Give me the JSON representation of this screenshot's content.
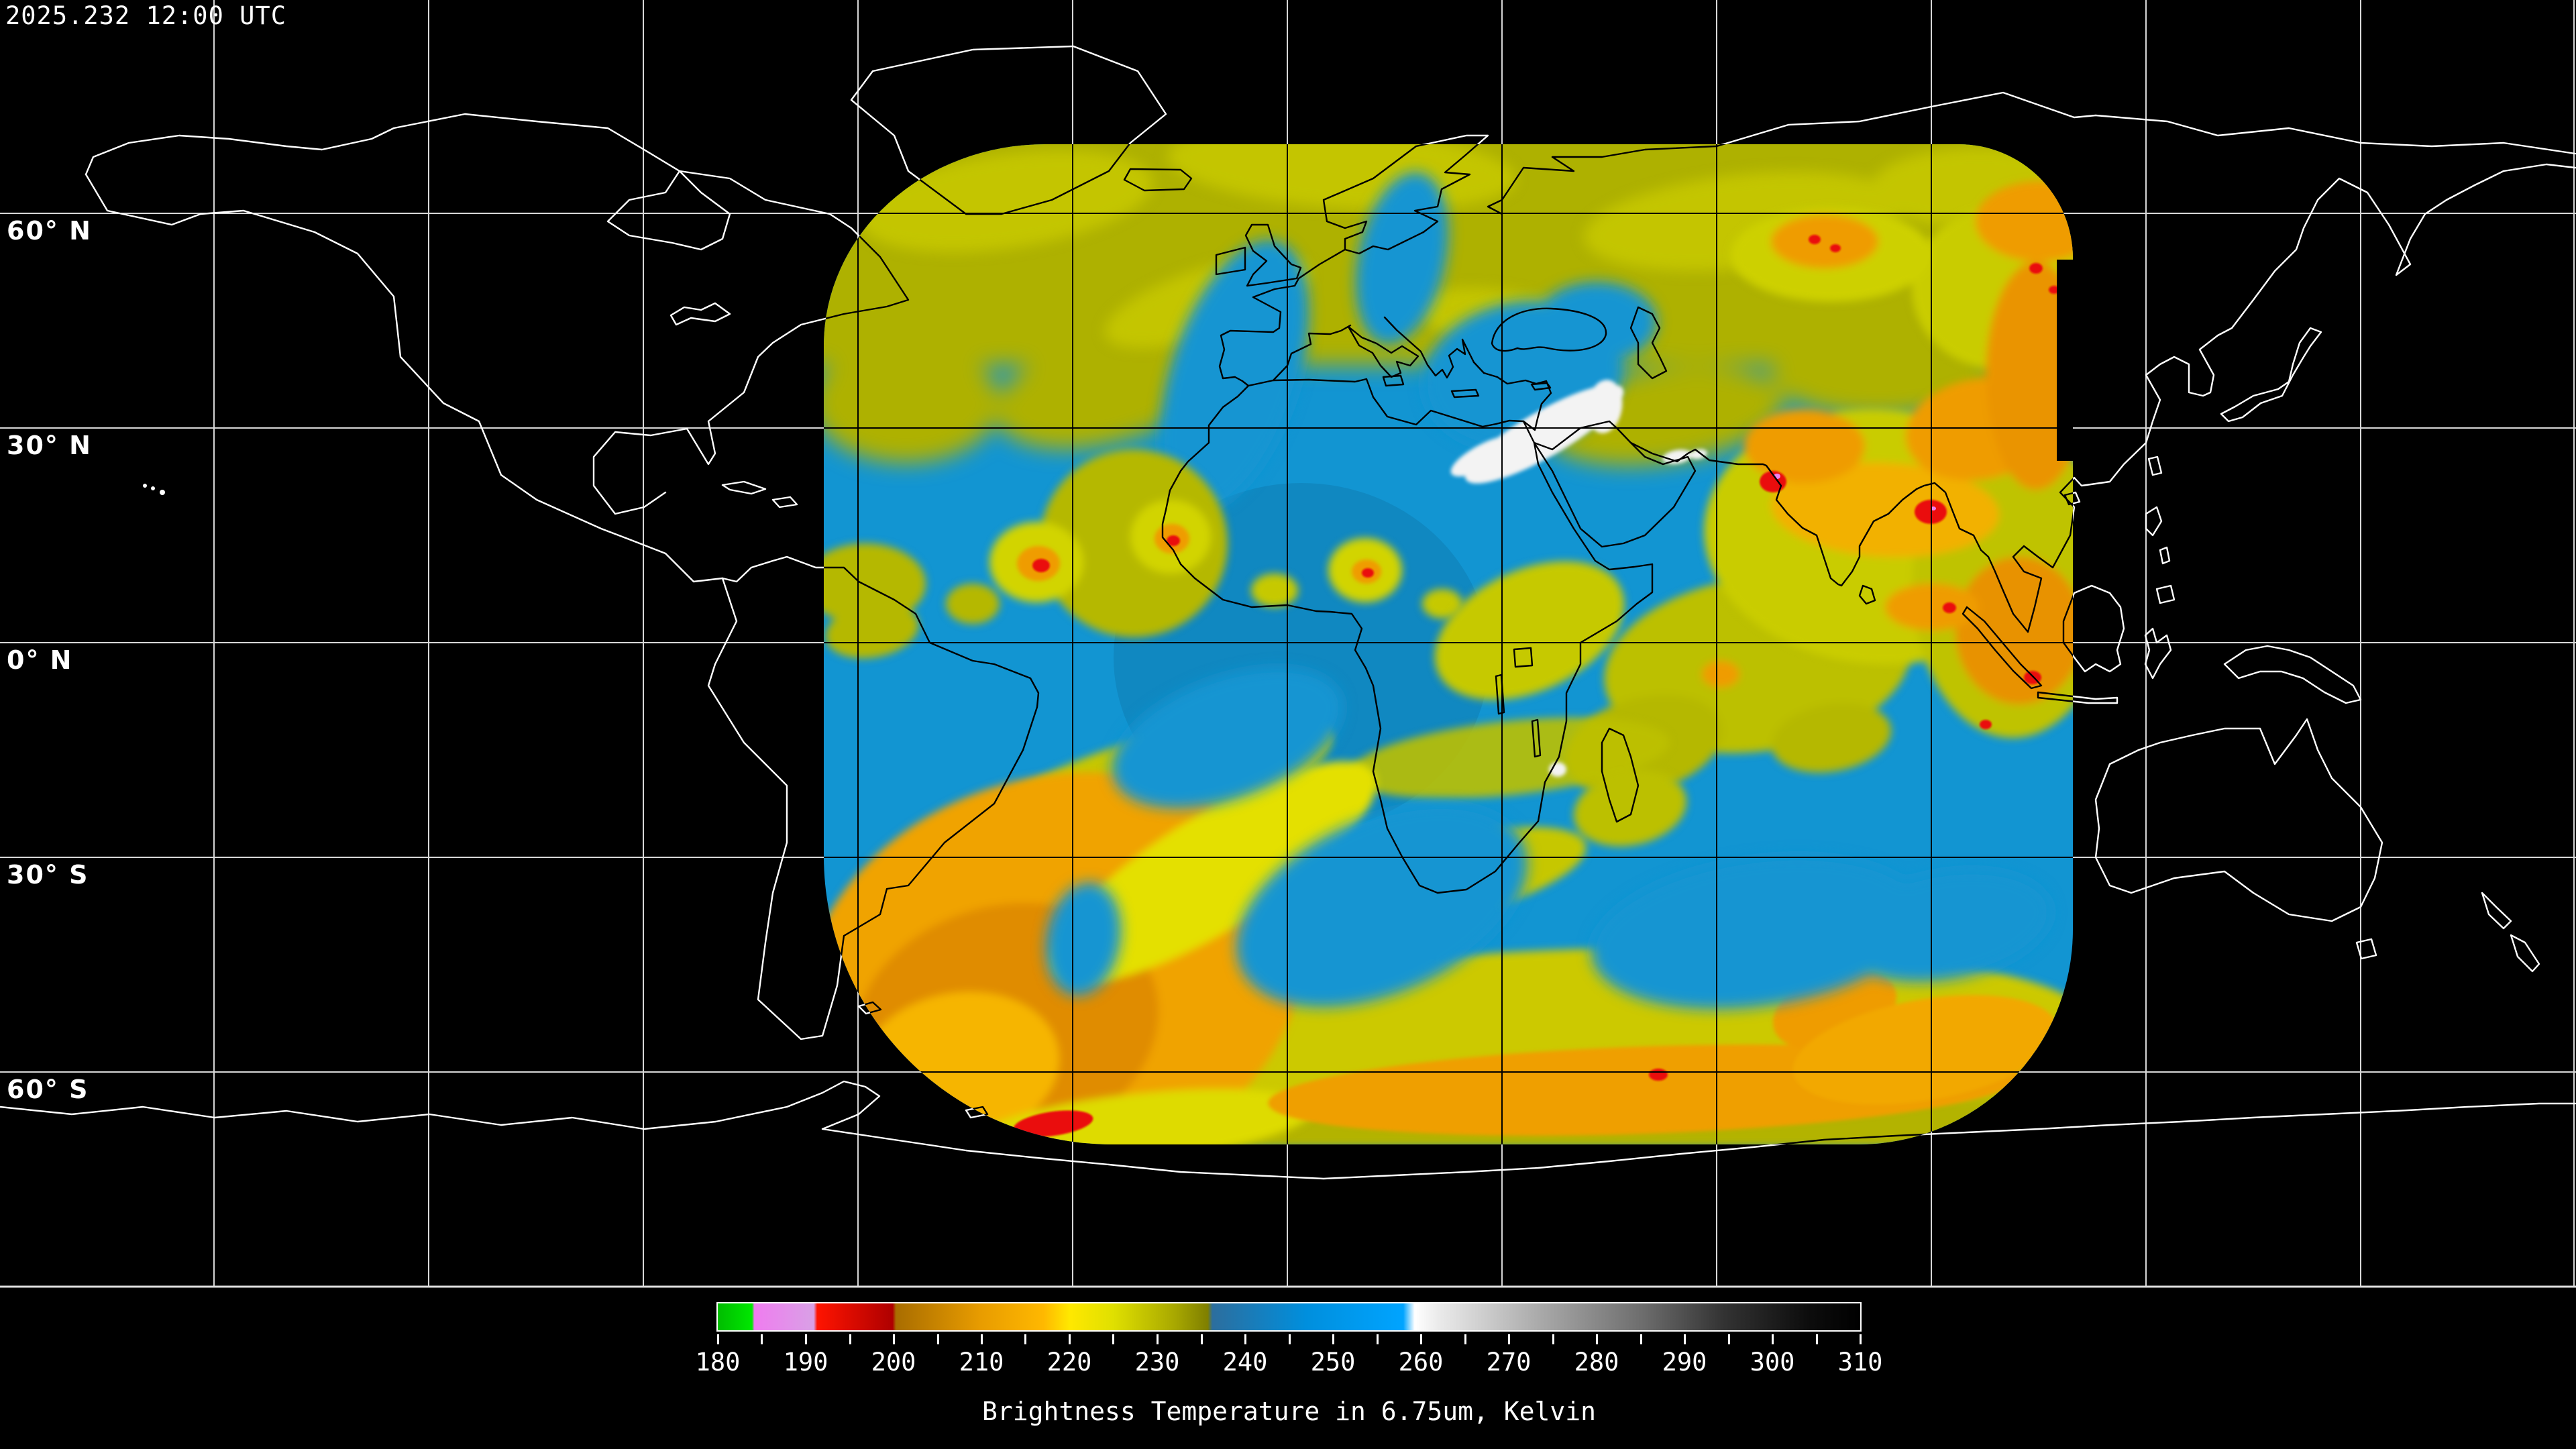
{
  "header": {
    "timestamp": "2025.232 12:00 UTC"
  },
  "map": {
    "latitude_labels": [
      {
        "label": "60° N"
      },
      {
        "label": "30° N"
      },
      {
        "label": "0° N"
      },
      {
        "label": "30° S"
      },
      {
        "label": "60° S"
      }
    ],
    "graticule": {
      "lon_step_deg": 30,
      "lat_step_deg": 30,
      "line_color_outside_swath": "#ffffff",
      "line_color_inside_swath": "#000000"
    },
    "coastline_color_outside_swath": "#ffffff",
    "coastline_color_inside_swath": "#000000",
    "background_color": "#000000",
    "swath_base_color": "#1295d2",
    "swath_description": "geostationary water-vapor data swath, rounded-corner region approx lon -65E to 110E, lat 70N to 70S"
  },
  "colorbar": {
    "min": 180,
    "max": 310,
    "minor_tick_step": 5,
    "label_step": 10,
    "tick_labels": [
      "180",
      "190",
      "200",
      "210",
      "220",
      "230",
      "240",
      "250",
      "260",
      "270",
      "280",
      "290",
      "300",
      "310"
    ],
    "caption": "Brightness Temperature in 6.75um, Kelvin",
    "units": "Kelvin",
    "segments": [
      {
        "range": "180-184",
        "color": "#00dd00",
        "name": "green"
      },
      {
        "range": "184-191",
        "color": "#e08ae8",
        "name": "violet"
      },
      {
        "range": "191-200",
        "color": "#dd0000",
        "name": "red"
      },
      {
        "range": "200-218",
        "color": "#d98e00",
        "name": "orange"
      },
      {
        "range": "218-236",
        "color": "#cfcf00",
        "name": "yellow-olive"
      },
      {
        "range": "236-259",
        "color": "#0098e8",
        "name": "blue"
      },
      {
        "range": "259-310",
        "color": "#9a9a9a",
        "name": "white-to-black"
      }
    ]
  }
}
